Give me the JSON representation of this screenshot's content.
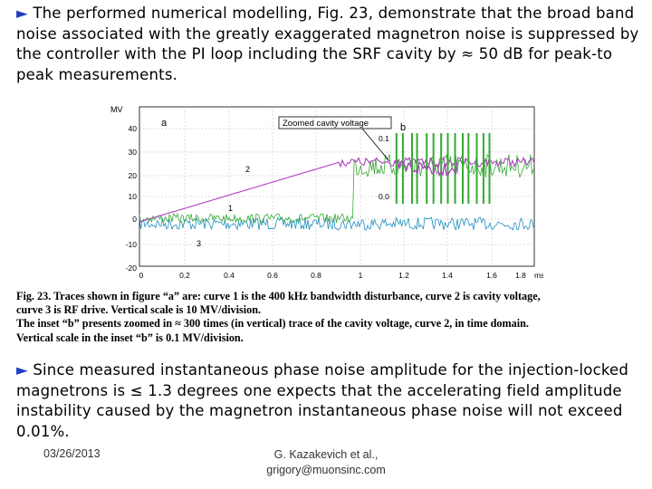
{
  "bullet_top": {
    "marker": "►",
    "text": "The performed numerical modelling, Fig. 23, demonstrate that the broad band noise associated with the greatly exaggerated magnetron noise is suppressed by the controller with the PI loop including the SRF cavity by ≈ 50 dB for peak-to peak measurements."
  },
  "figure": {
    "y_unit_label": "MV",
    "x_unit_label": "ms",
    "y_ticks": [
      "40",
      "30",
      "20",
      "10",
      "0",
      "-10",
      "-20"
    ],
    "x_ticks": [
      "0",
      "0.2",
      "0.4",
      "0.6",
      "0.8",
      "1",
      "1.2",
      "1.4",
      "1.6",
      "1.8"
    ],
    "panel_a_label": "a",
    "panel_b_label": "b",
    "inset_title": "Zoomed cavity voltage",
    "inset_tick_top": "0.1",
    "inset_tick_bottom": "0.0",
    "curve_labels": [
      "1",
      "2",
      "3"
    ],
    "colors": {
      "curve1_disturbance": "#33aa33",
      "curve2_cavity": "#b040c0",
      "curve3_rf_drive": "#1f8fbf",
      "axes": "#000000"
    }
  },
  "caption": {
    "line1": "Fig. 23. Traces shown in figure “a” are: curve 1 is the 400 kHz bandwidth disturbance, curve 2 is cavity voltage,",
    "line2": "curve 3 is RF drive. Vertical scale is 10 MV/division.",
    "line3": "The inset “b” presents zoomed in ≈ 300 times (in vertical) trace of the cavity voltage, curve 2, in time domain.",
    "line4": "Vertical scale in the inset “b” is 0.1 MV/division."
  },
  "bullet_bottom": {
    "marker": "►",
    "text": "Since measured instantaneous phase noise amplitude for the injection-locked magnetrons is ≤ 1.3 degrees one expects that the accelerating field amplitude instability caused by the magnetron instantaneous phase noise will not exceed 0.01%."
  },
  "footer": {
    "date": "03/26/2013",
    "author_line1": "G. Kazakevich et al.,",
    "author_line2": "grigory@muonsinc.com"
  }
}
